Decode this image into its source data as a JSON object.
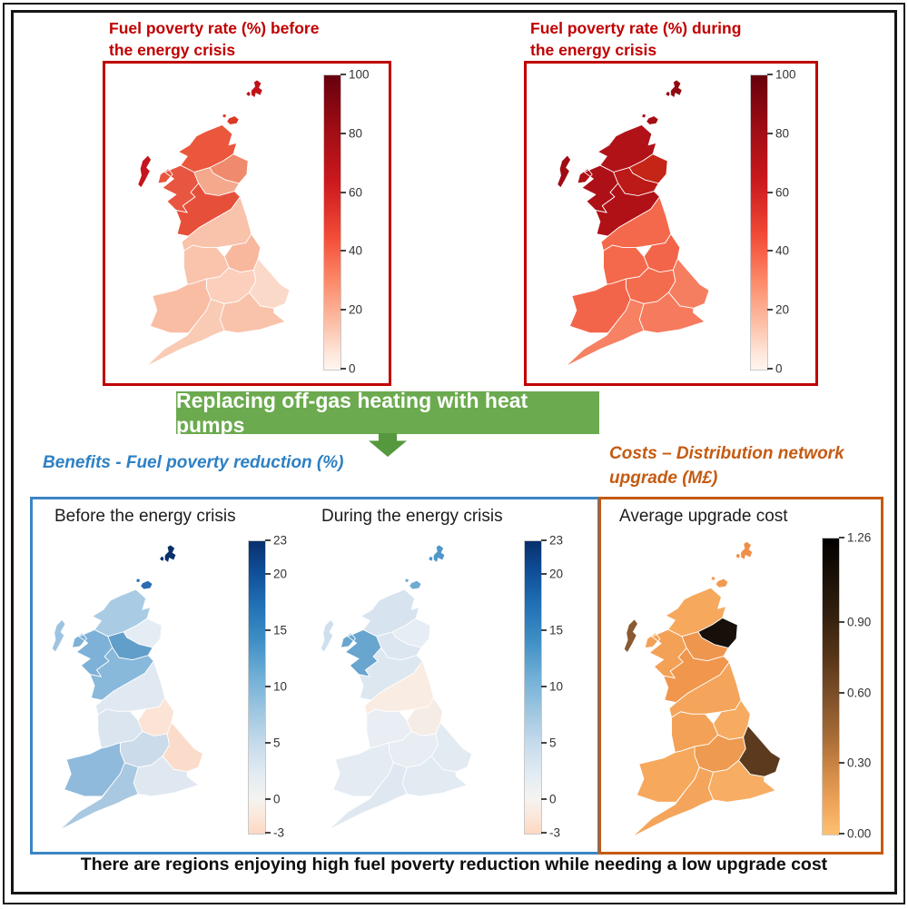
{
  "top_panels": [
    {
      "id": "red_before",
      "title": "Fuel poverty rate (%) before the energy crisis"
    },
    {
      "id": "red_during",
      "title": "Fuel poverty rate (%) during the energy crisis"
    }
  ],
  "banner": {
    "label": "Replacing off-gas heating with heat pumps",
    "bg_color": "#6baa4e",
    "arrow_color": "#55983d"
  },
  "benefits": {
    "title": "Benefits - Fuel poverty reduction (%)",
    "accent_color": "#2e80c4",
    "panels": [
      {
        "id": "blue_before",
        "label": "Before the energy crisis"
      },
      {
        "id": "blue_during",
        "label": "During the energy crisis"
      }
    ]
  },
  "costs": {
    "title": "Costs – Distribution network upgrade (M£)",
    "accent_color": "#c55a11",
    "panel_label": "Average upgrade cost"
  },
  "caption": "There are regions enjoying high fuel poverty reduction while needing a low upgrade cost",
  "colors": {
    "dark_red": "#c00000",
    "frame_black": "#151515",
    "blue_border": "#3a85c4",
    "orange_border": "#c55a11"
  },
  "colorbars": {
    "reds": {
      "ticks": [
        {
          "label": "100",
          "pos": 0
        },
        {
          "label": "80",
          "pos": 20
        },
        {
          "label": "60",
          "pos": 40
        },
        {
          "label": "40",
          "pos": 60
        },
        {
          "label": "20",
          "pos": 80
        },
        {
          "label": "0",
          "pos": 100
        }
      ],
      "stops": [
        [
          "#67000d",
          0
        ],
        [
          "#9e0d14",
          18
        ],
        [
          "#cb181d",
          36
        ],
        [
          "#f34c37",
          55
        ],
        [
          "#fc8a6a",
          70
        ],
        [
          "#fcbea5",
          84
        ],
        [
          "#fee8dd",
          95
        ],
        [
          "#fff5f0",
          100
        ]
      ]
    },
    "blues": {
      "ticks": [
        {
          "label": "23",
          "pos": 0
        },
        {
          "label": "20",
          "pos": 11.5
        },
        {
          "label": "15",
          "pos": 30.8
        },
        {
          "label": "10",
          "pos": 50
        },
        {
          "label": "5",
          "pos": 69.2
        },
        {
          "label": "0",
          "pos": 88.5
        },
        {
          "label": "-3",
          "pos": 100
        }
      ],
      "stops": [
        [
          "#08306b",
          0
        ],
        [
          "#0f4d97",
          10
        ],
        [
          "#2171b5",
          22
        ],
        [
          "#3f8fc5",
          34
        ],
        [
          "#6faed6",
          46
        ],
        [
          "#9dc6e0",
          58
        ],
        [
          "#c8dcec",
          70
        ],
        [
          "#e3ecf3",
          80
        ],
        [
          "#f5f3f0",
          88
        ],
        [
          "#fbe7da",
          94
        ],
        [
          "#fcd8c2",
          100
        ]
      ]
    },
    "cost": {
      "ticks": [
        {
          "label": "1.26",
          "pos": 0
        },
        {
          "label": "0.90",
          "pos": 28.6
        },
        {
          "label": "0.60",
          "pos": 52.4
        },
        {
          "label": "0.30",
          "pos": 76.2
        },
        {
          "label": "0.00",
          "pos": 100
        }
      ],
      "stops": [
        [
          "#000000",
          0
        ],
        [
          "#190f06",
          12
        ],
        [
          "#33200f",
          26
        ],
        [
          "#573517",
          40
        ],
        [
          "#80512a",
          54
        ],
        [
          "#ab6e36",
          68
        ],
        [
          "#d58d49",
          80
        ],
        [
          "#f0a55a",
          90
        ],
        [
          "#fdc170",
          100
        ]
      ]
    }
  },
  "maps": {
    "red_before": {
      "fills": {
        "shetland": "#c01218",
        "orkney": "#d93a26",
        "hebrides": "#c4161c",
        "highlands": "#ea573c",
        "grampian": "#f08a6c",
        "west_scotland": "#e85540",
        "central_scotland": "#f5a98c",
        "south_scotland": "#e6503a",
        "north_england": "#f9c2aa",
        "yorkshire": "#f8b89e",
        "northwest_england": "#f9c3ac",
        "midlands": "#fbcfbc",
        "east_england": "#fbd9c9",
        "wales": "#f9bda4",
        "south_east_england": "#f9c3ab",
        "south_west_england": "#f9cbb5"
      }
    },
    "red_during": {
      "fills": {
        "shetland": "#8f0a12",
        "orkney": "#a50e15",
        "hebrides": "#9f0c14",
        "highlands": "#b11218",
        "grampian": "#c52517",
        "west_scotland": "#ad1016",
        "central_scotland": "#bb1a18",
        "south_scotland": "#b01117",
        "north_england": "#f4694c",
        "yorkshire": "#f3654a",
        "northwest_england": "#f4694c",
        "midlands": "#f46c4e",
        "east_england": "#f67e60",
        "wales": "#f3654a",
        "south_east_england": "#f67a5d",
        "south_west_england": "#f68163"
      }
    },
    "blue_before": {
      "fills": {
        "shetland": "#08306b",
        "orkney": "#2a6db2",
        "hebrides": "#9dc3e0",
        "highlands": "#a9cce4",
        "grampian": "#e4edf4",
        "west_scotland": "#7eb1d7",
        "central_scotland": "#619fca",
        "south_scotland": "#88b8da",
        "north_england": "#e0e9f1",
        "yorkshire": "#fbe3d5",
        "northwest_england": "#dbe5ef",
        "midlands": "#ccdbea",
        "east_england": "#fbdccb",
        "wales": "#8fbadc",
        "south_east_england": "#dfe8f1",
        "south_west_england": "#a9c8e1"
      }
    },
    "blue_during": {
      "fills": {
        "shetland": "#4f97ca",
        "orkney": "#6fabd2",
        "hebrides": "#cfdfed",
        "highlands": "#d7e3ef",
        "grampian": "#e7edf4",
        "west_scotland": "#68a5cf",
        "central_scotland": "#dce6f0",
        "south_scotland": "#dde7f0",
        "north_england": "#f9ece2",
        "yorkshire": "#f6ece6",
        "northwest_england": "#e9eef4",
        "midlands": "#e7edf3",
        "east_england": "#e2eaf2",
        "wales": "#e4ebf3",
        "south_east_england": "#e2eaf2",
        "south_west_england": "#dfe8f1"
      }
    },
    "cost": {
      "fills": {
        "shetland": "#ef8f4a",
        "orkney": "#f29a52",
        "hebrides": "#8a5a32",
        "highlands": "#f6a85c",
        "grampian": "#17100a",
        "west_scotland": "#f3a157",
        "central_scotland": "#ef964e",
        "south_scotland": "#f0964d",
        "north_england": "#f5a55b",
        "yorkshire": "#f6ab61",
        "northwest_england": "#f3a157",
        "midlands": "#ee9a50",
        "east_england": "#5c3a1d",
        "wales": "#f6a85c",
        "south_east_england": "#f7ad63",
        "south_west_england": "#f5a55b"
      }
    }
  },
  "chart_data": [
    {
      "type": "heatmap",
      "title": "Fuel poverty rate (%) before the energy crisis",
      "colormap": "Reds",
      "range": [
        0,
        100
      ],
      "colorbar_ticks": [
        0,
        20,
        40,
        60,
        80,
        100
      ],
      "regions": {
        "shetland": 85,
        "orkney": 75,
        "hebrides": 84,
        "highlands": 60,
        "grampian": 40,
        "west_scotland": 62,
        "central_scotland": 32,
        "south_scotland": 64,
        "north_england": 22,
        "yorkshire": 27,
        "northwest_england": 22,
        "midlands": 17,
        "east_england": 14,
        "wales": 25,
        "south_east_england": 22,
        "south_west_england": 19
      }
    },
    {
      "type": "heatmap",
      "title": "Fuel poverty rate (%) during the energy crisis",
      "colormap": "Reds",
      "range": [
        0,
        100
      ],
      "colorbar_ticks": [
        0,
        20,
        40,
        60,
        80,
        100
      ],
      "regions": {
        "shetland": 96,
        "orkney": 90,
        "hebrides": 93,
        "highlands": 89,
        "grampian": 76,
        "west_scotland": 90,
        "central_scotland": 85,
        "south_scotland": 89,
        "north_england": 45,
        "yorkshire": 46,
        "northwest_england": 45,
        "midlands": 44,
        "east_england": 40,
        "wales": 46,
        "south_east_england": 42,
        "south_west_england": 41
      }
    },
    {
      "type": "heatmap",
      "title": "Benefits - Fuel poverty reduction (%) — Before the energy crisis",
      "colormap": "blue-white-peach diverging",
      "range": [
        -3,
        23
      ],
      "colorbar_ticks": [
        -3,
        0,
        5,
        10,
        15,
        20,
        23
      ],
      "regions": {
        "shetland": 23,
        "orkney": 17,
        "hebrides": 7,
        "highlands": 6.5,
        "grampian": 1,
        "west_scotland": 9,
        "central_scotland": 12,
        "south_scotland": 8,
        "north_england": 1.5,
        "yorkshire": -1.5,
        "northwest_england": 2.5,
        "midlands": 4,
        "east_england": -1.5,
        "wales": 8,
        "south_east_england": 2,
        "south_west_england": 6.5
      }
    },
    {
      "type": "heatmap",
      "title": "Benefits - Fuel poverty reduction (%) — During the energy crisis",
      "colormap": "blue-white-peach diverging",
      "range": [
        -3,
        23
      ],
      "colorbar_ticks": [
        -3,
        0,
        5,
        10,
        15,
        20,
        23
      ],
      "regions": {
        "shetland": 12,
        "orkney": 9,
        "hebrides": 3,
        "highlands": 2.5,
        "grampian": 1.5,
        "west_scotland": 10,
        "central_scotland": 2,
        "south_scotland": 2,
        "north_england": -0.5,
        "yorkshire": 0.5,
        "northwest_england": 1.5,
        "midlands": 1.5,
        "east_england": 2,
        "wales": 2,
        "south_east_england": 2,
        "south_west_england": 2
      }
    },
    {
      "type": "heatmap",
      "title": "Costs – Distribution network upgrade (M£) — Average upgrade cost",
      "colormap": "orange-brown-black",
      "range": [
        0,
        1.26
      ],
      "colorbar_ticks": [
        0.0,
        0.3,
        0.6,
        0.9,
        1.26
      ],
      "regions": {
        "shetland": 0.25,
        "orkney": 0.2,
        "hebrides": 0.55,
        "highlands": 0.15,
        "grampian": 1.26,
        "west_scotland": 0.18,
        "central_scotland": 0.22,
        "south_scotland": 0.22,
        "north_england": 0.17,
        "yorkshire": 0.14,
        "northwest_england": 0.18,
        "midlands": 0.23,
        "east_england": 0.75,
        "wales": 0.15,
        "south_east_england": 0.12,
        "south_west_england": 0.16
      }
    }
  ]
}
